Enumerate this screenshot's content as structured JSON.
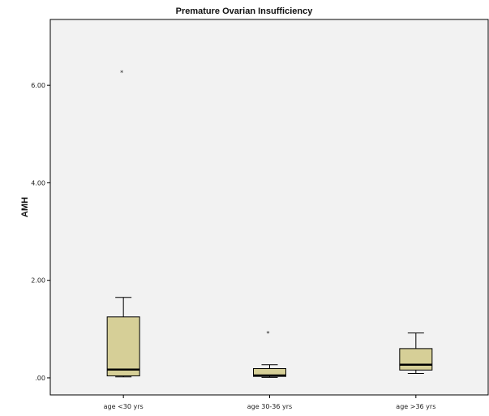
{
  "chart_data": {
    "type": "boxplot",
    "title": "Premature Ovarian Insufficiency",
    "xlabel": "",
    "ylabel": "AMH",
    "ylim": [
      -0.35,
      7.35
    ],
    "yticks": [
      0.0,
      2.0,
      4.0,
      6.0
    ],
    "ytick_labels": [
      ".00",
      "2.00",
      "4.00",
      "6.00"
    ],
    "categories": [
      "age <30 yrs",
      "age 30-36 yrs",
      "age >36 yrs"
    ],
    "boxes": [
      {
        "category": "age <30 yrs",
        "whisker_low": 0.02,
        "q1": 0.04,
        "median": 0.17,
        "q3": 1.25,
        "whisker_high": 1.65,
        "outliers": [],
        "extremes": [
          6.28
        ]
      },
      {
        "category": "age 30-36 yrs",
        "whisker_low": 0.01,
        "q1": 0.03,
        "median": 0.05,
        "q3": 0.19,
        "whisker_high": 0.27,
        "outliers": [],
        "extremes": [
          0.93
        ]
      },
      {
        "category": "age >36 yrs",
        "whisker_low": 0.09,
        "q1": 0.16,
        "median": 0.27,
        "q3": 0.6,
        "whisker_high": 0.92,
        "outliers": [],
        "extremes": []
      }
    ],
    "colors": {
      "box_fill": "#d6cf97",
      "plot_bg": "#f2f2f2",
      "border": "#000000",
      "median": "#000000"
    },
    "grid": false,
    "legend": "none"
  }
}
